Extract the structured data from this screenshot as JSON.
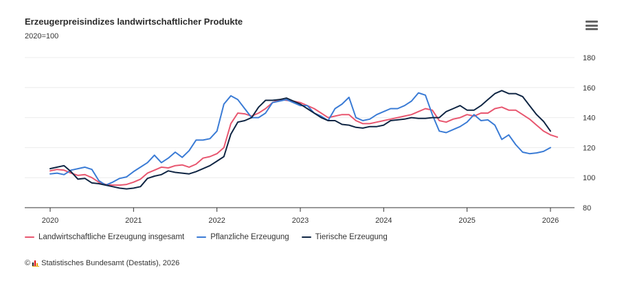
{
  "header": {
    "title": "Erzeugerpreisindizes landwirtschaftlicher Produkte",
    "subtitle": "2020=100",
    "menu_icon": "hamburger-menu-icon"
  },
  "credit": {
    "symbol": "©",
    "icon": "destatis-logo-icon",
    "text": "Statistisches Bundesamt (Destatis), 2026"
  },
  "chart_data": {
    "type": "line",
    "title": "Erzeugerpreisindizes landwirtschaftlicher Produkte",
    "subtitle": "2020=100",
    "xlabel": "",
    "ylabel": "",
    "x_start": "2020-01",
    "x_step": "month",
    "x_ticks": [
      "2020",
      "2021",
      "2022",
      "2023",
      "2024",
      "2025",
      "2026"
    ],
    "y_ticks": [
      80,
      100,
      120,
      140,
      160,
      180
    ],
    "ylim": [
      80,
      180
    ],
    "xlim": [
      "2019-10",
      "2026-04"
    ],
    "y_axis_side": "right",
    "grid": true,
    "legend_position": "bottom-left",
    "series": [
      {
        "name": "Landwirtschaftliche Erzeugung insgesamt",
        "color": "#e8566f",
        "values": [
          104.5,
          105.5,
          105,
          103,
          101.5,
          102,
          100,
          97,
          95.5,
          95,
          95,
          95.5,
          97,
          99,
          103,
          105,
          107,
          106.5,
          108,
          108.5,
          107,
          109,
          113,
          114,
          116,
          120,
          136,
          143,
          142.5,
          141,
          143,
          146,
          150,
          152,
          151.5,
          151,
          150,
          148,
          146,
          143,
          140,
          141,
          142,
          142,
          138,
          136,
          136,
          137,
          138,
          139,
          140,
          141,
          142,
          144,
          146,
          145,
          138,
          137,
          139,
          140,
          142,
          141,
          143,
          143,
          146,
          147,
          145,
          145,
          142,
          139,
          135,
          131,
          128.5,
          127
        ]
      },
      {
        "name": "Pflanzliche Erzeugung",
        "color": "#3a7bd5",
        "values": [
          102.5,
          103,
          102,
          105,
          106,
          107,
          105.5,
          98,
          95,
          97,
          99.5,
          100.5,
          104,
          107,
          110,
          115,
          110,
          113,
          117,
          113.5,
          118,
          125,
          125,
          126,
          131,
          149,
          154.5,
          152,
          146,
          140,
          140,
          143,
          150,
          151,
          152,
          150,
          148,
          148,
          143,
          141,
          138,
          146,
          149,
          153.5,
          140,
          138,
          139,
          142,
          144,
          146,
          146,
          148,
          151,
          156.5,
          155,
          142,
          131,
          130,
          132,
          134,
          137,
          142,
          138,
          138.5,
          135,
          125.5,
          128.5,
          122,
          117,
          116,
          116.5,
          117.5,
          120
        ]
      },
      {
        "name": "Tierische Erzeugung",
        "color": "#0f2543",
        "values": [
          106,
          107,
          108,
          104,
          99,
          99.5,
          96.5,
          96,
          95,
          94,
          93,
          92.5,
          93,
          94,
          99.5,
          101,
          102,
          104.5,
          103.5,
          103,
          102.5,
          104,
          106,
          108,
          111,
          114,
          129,
          137,
          138,
          140,
          147,
          151.5,
          151.5,
          152,
          153,
          151,
          149,
          146,
          143,
          140,
          138,
          138,
          135.5,
          135,
          133.5,
          133,
          134,
          134,
          135,
          138,
          138.5,
          139,
          140,
          139.5,
          139.5,
          140,
          140,
          144,
          146,
          148,
          145,
          145,
          148,
          152,
          156,
          158,
          156,
          156,
          154,
          148,
          142,
          137.5,
          131
        ]
      }
    ]
  }
}
